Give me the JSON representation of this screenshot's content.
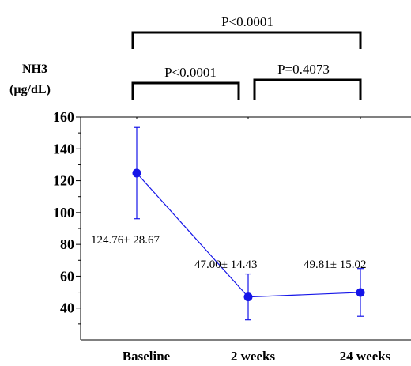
{
  "chart_data": {
    "type": "line",
    "categories": [
      "Baseline",
      "2 weeks",
      "24 weeks"
    ],
    "series": [
      {
        "values": [
          124.76,
          47.0,
          49.81
        ],
        "error": [
          28.67,
          14.43,
          15.02
        ]
      }
    ],
    "data_labels": [
      "124.76± 28.67",
      "47.00± 14.43",
      "49.81± 15.02"
    ],
    "ylabel_line1": "NH3",
    "ylabel_line2": "(µg/dL)",
    "yticks": [
      40,
      60,
      80,
      100,
      120,
      140,
      160
    ],
    "ylim": [
      20,
      160
    ],
    "grid": false,
    "color": "#1515e8",
    "comparisons": [
      {
        "from": 0,
        "to": 2,
        "label": "P<0.0001"
      },
      {
        "from": 0,
        "to": 1,
        "label": "P<0.0001"
      },
      {
        "from": 1,
        "to": 2,
        "label": "P=0.4073"
      }
    ]
  }
}
